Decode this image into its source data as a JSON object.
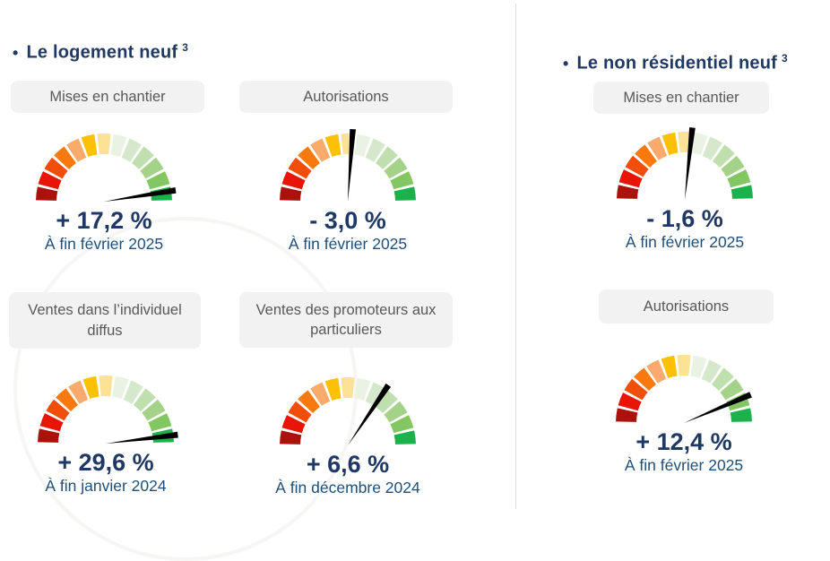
{
  "page": {
    "background": "#ffffff",
    "divider_color": "#dcdcdc"
  },
  "colors": {
    "title_text": "#1F3864",
    "value_text": "#1F3864",
    "date_text": "#1F4E79",
    "chip_background": "#F2F2F2",
    "chip_text": "#595959"
  },
  "sections": [
    {
      "title": "Le logement neuf",
      "title_sup": "3"
    },
    {
      "title": "Le non résidentiel neuf",
      "title_sup": "3"
    }
  ],
  "gauge_style": {
    "segments": 13,
    "segment_colors": [
      "#AB120C",
      "#E81507",
      "#F24E0B",
      "#F9790F",
      "#FBAA6E",
      "#FCC107",
      "#FBE294",
      "#E9F2E3",
      "#D5E8CB",
      "#C0DFAE",
      "#A3D288",
      "#83C763",
      "#1CB14B"
    ],
    "needle_color": "#000000",
    "inner_radius": 53,
    "outer_radius": 76,
    "needle_length": 81,
    "gap_deg": 2.4
  },
  "gauges": [
    {
      "label": "Mises en chantier",
      "value": "+ 17,2 %",
      "date": "À fin février 2025",
      "needle_angle_deg": 9
    },
    {
      "label": "Autorisations",
      "value": "- 3,0 %",
      "date": "À fin février 2025",
      "needle_angle_deg": 86
    },
    {
      "label": "Ventes dans l’individuel diffus",
      "value": "+ 29,6 %",
      "date": "À fin janvier 2024",
      "needle_angle_deg": 7
    },
    {
      "label": "Ventes des promoteurs aux particuliers",
      "value": "+ 6,6 %",
      "date": "À fin décembre 2024",
      "needle_angle_deg": 56
    },
    {
      "label": "Mises en chantier",
      "value": "- 1,6 %",
      "date": "À fin février 2025",
      "needle_angle_deg": 84
    },
    {
      "label": "Autorisations",
      "value": "+ 12,4 %",
      "date": "À fin février 2025",
      "needle_angle_deg": 23
    }
  ],
  "chart_data": [
    {
      "type": "gauge",
      "section": "Le logement neuf",
      "indicator": "Mises en chantier",
      "value_pct": 17.2,
      "as_of": "À fin février 2025",
      "scale": "red (bad) to green (good), semicircular, 13 segments"
    },
    {
      "type": "gauge",
      "section": "Le logement neuf",
      "indicator": "Autorisations",
      "value_pct": -3.0,
      "as_of": "À fin février 2025",
      "scale": "red (bad) to green (good), semicircular, 13 segments"
    },
    {
      "type": "gauge",
      "section": "Le logement neuf",
      "indicator": "Ventes dans l’individuel diffus",
      "value_pct": 29.6,
      "as_of": "À fin janvier 2024",
      "scale": "red (bad) to green (good), semicircular, 13 segments"
    },
    {
      "type": "gauge",
      "section": "Le logement neuf",
      "indicator": "Ventes des promoteurs aux particuliers",
      "value_pct": 6.6,
      "as_of": "À fin décembre 2024",
      "scale": "red (bad) to green (good), semicircular, 13 segments"
    },
    {
      "type": "gauge",
      "section": "Le non résidentiel neuf",
      "indicator": "Mises en chantier",
      "value_pct": -1.6,
      "as_of": "À fin février 2025",
      "scale": "red (bad) to green (good), semicircular, 13 segments"
    },
    {
      "type": "gauge",
      "section": "Le non résidentiel neuf",
      "indicator": "Autorisations",
      "value_pct": 12.4,
      "as_of": "À fin février 2025",
      "scale": "red (bad) to green (good), semicircular, 13 segments"
    }
  ]
}
